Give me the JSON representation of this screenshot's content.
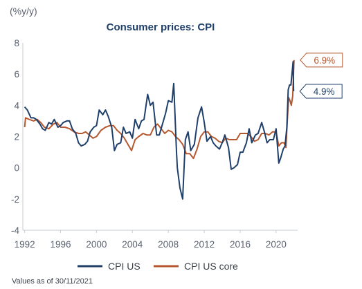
{
  "chart_data": {
    "type": "line",
    "title": "Consumer prices: CPI",
    "ylabel": "(%y/y)",
    "xlabel": "",
    "ylim": [
      -4,
      8
    ],
    "xlim": [
      1991.8,
      2022.4
    ],
    "y_ticks": [
      -4,
      -2,
      0,
      2,
      4,
      6,
      8
    ],
    "x_ticks": [
      1992,
      1996,
      2000,
      2004,
      2008,
      2012,
      2016,
      2020
    ],
    "grid": false,
    "legend_position": "bottom",
    "note": "Values as of 30/11/2021",
    "series": [
      {
        "name": "CPI US",
        "color": "#1f3f6b",
        "end_label": "4.9%",
        "points": [
          [
            1992.0,
            3.9
          ],
          [
            1992.3,
            3.7
          ],
          [
            1992.7,
            3.2
          ],
          [
            1993.0,
            3.2
          ],
          [
            1993.3,
            3.1
          ],
          [
            1993.7,
            2.8
          ],
          [
            1994.0,
            2.5
          ],
          [
            1994.3,
            2.4
          ],
          [
            1994.7,
            2.9
          ],
          [
            1995.0,
            2.8
          ],
          [
            1995.3,
            3.1
          ],
          [
            1995.7,
            2.6
          ],
          [
            1996.0,
            2.7
          ],
          [
            1996.3,
            2.9
          ],
          [
            1996.7,
            3.0
          ],
          [
            1997.0,
            3.0
          ],
          [
            1997.3,
            2.5
          ],
          [
            1997.7,
            2.2
          ],
          [
            1998.0,
            1.6
          ],
          [
            1998.3,
            1.4
          ],
          [
            1998.7,
            1.5
          ],
          [
            1999.0,
            1.7
          ],
          [
            1999.3,
            2.3
          ],
          [
            1999.7,
            2.6
          ],
          [
            2000.0,
            2.7
          ],
          [
            2000.3,
            3.7
          ],
          [
            2000.7,
            3.4
          ],
          [
            2001.0,
            3.7
          ],
          [
            2001.3,
            3.3
          ],
          [
            2001.7,
            2.6
          ],
          [
            2002.0,
            1.1
          ],
          [
            2002.3,
            1.5
          ],
          [
            2002.7,
            1.6
          ],
          [
            2003.0,
            2.6
          ],
          [
            2003.3,
            2.2
          ],
          [
            2003.7,
            2.3
          ],
          [
            2004.0,
            1.9
          ],
          [
            2004.3,
            3.1
          ],
          [
            2004.7,
            2.5
          ],
          [
            2005.0,
            3.0
          ],
          [
            2005.3,
            3.1
          ],
          [
            2005.7,
            4.7
          ],
          [
            2006.0,
            4.0
          ],
          [
            2006.3,
            4.2
          ],
          [
            2006.7,
            2.1
          ],
          [
            2007.0,
            2.1
          ],
          [
            2007.3,
            2.7
          ],
          [
            2007.7,
            3.5
          ],
          [
            2008.0,
            4.3
          ],
          [
            2008.4,
            4.2
          ],
          [
            2008.6,
            5.4
          ],
          [
            2008.9,
            1.1
          ],
          [
            2009.0,
            0.0
          ],
          [
            2009.3,
            -1.3
          ],
          [
            2009.6,
            -2.0
          ],
          [
            2009.9,
            1.8
          ],
          [
            2010.2,
            2.3
          ],
          [
            2010.5,
            1.1
          ],
          [
            2010.9,
            1.5
          ],
          [
            2011.3,
            3.2
          ],
          [
            2011.7,
            3.9
          ],
          [
            2012.0,
            2.9
          ],
          [
            2012.3,
            1.7
          ],
          [
            2012.7,
            2.0
          ],
          [
            2013.0,
            1.6
          ],
          [
            2013.3,
            1.4
          ],
          [
            2013.7,
            1.2
          ],
          [
            2014.0,
            1.6
          ],
          [
            2014.3,
            2.1
          ],
          [
            2014.7,
            1.3
          ],
          [
            2015.0,
            -0.1
          ],
          [
            2015.3,
            0.0
          ],
          [
            2015.7,
            0.2
          ],
          [
            2016.0,
            1.0
          ],
          [
            2016.3,
            1.0
          ],
          [
            2016.7,
            1.6
          ],
          [
            2017.0,
            2.5
          ],
          [
            2017.3,
            1.6
          ],
          [
            2017.7,
            2.1
          ],
          [
            2018.0,
            2.2
          ],
          [
            2018.4,
            2.9
          ],
          [
            2018.7,
            2.3
          ],
          [
            2019.0,
            1.6
          ],
          [
            2019.3,
            1.8
          ],
          [
            2019.7,
            1.8
          ],
          [
            2020.0,
            2.5
          ],
          [
            2020.3,
            0.3
          ],
          [
            2020.5,
            0.6
          ],
          [
            2020.8,
            1.2
          ],
          [
            2021.0,
            1.4
          ],
          [
            2021.2,
            2.6
          ],
          [
            2021.35,
            5.0
          ],
          [
            2021.5,
            5.3
          ],
          [
            2021.65,
            5.3
          ],
          [
            2021.8,
            6.2
          ],
          [
            2021.9,
            6.8
          ],
          [
            2021.95,
            4.9
          ]
        ]
      },
      {
        "name": "CPI US core",
        "color": "#b5582f",
        "end_label": "6.9%",
        "points": [
          [
            1992.0,
            2.6
          ],
          [
            1992.1,
            3.2
          ],
          [
            1992.5,
            3.1
          ],
          [
            1993.0,
            3.0
          ],
          [
            1993.4,
            3.1
          ],
          [
            1993.8,
            2.9
          ],
          [
            1994.2,
            2.6
          ],
          [
            1994.7,
            2.5
          ],
          [
            1995.2,
            2.8
          ],
          [
            1995.6,
            2.9
          ],
          [
            1996.0,
            2.6
          ],
          [
            1996.5,
            2.6
          ],
          [
            1997.0,
            2.5
          ],
          [
            1997.5,
            2.3
          ],
          [
            1998.0,
            2.2
          ],
          [
            1998.4,
            2.2
          ],
          [
            1998.8,
            2.3
          ],
          [
            1999.2,
            2.1
          ],
          [
            1999.6,
            1.9
          ],
          [
            2000.0,
            2.0
          ],
          [
            2000.5,
            2.4
          ],
          [
            2001.0,
            2.6
          ],
          [
            2001.5,
            2.7
          ],
          [
            2001.9,
            2.7
          ],
          [
            2002.3,
            2.4
          ],
          [
            2002.7,
            2.2
          ],
          [
            2003.1,
            1.9
          ],
          [
            2003.5,
            1.5
          ],
          [
            2003.9,
            1.1
          ],
          [
            2004.3,
            1.8
          ],
          [
            2004.7,
            2.0
          ],
          [
            2005.2,
            2.2
          ],
          [
            2005.6,
            2.1
          ],
          [
            2006.0,
            2.1
          ],
          [
            2006.4,
            2.6
          ],
          [
            2006.8,
            2.8
          ],
          [
            2007.2,
            2.5
          ],
          [
            2007.6,
            2.2
          ],
          [
            2008.0,
            2.4
          ],
          [
            2008.4,
            2.3
          ],
          [
            2008.8,
            2.0
          ],
          [
            2009.2,
            1.8
          ],
          [
            2009.6,
            1.5
          ],
          [
            2010.0,
            0.9
          ],
          [
            2010.4,
            0.9
          ],
          [
            2010.8,
            0.6
          ],
          [
            2011.2,
            1.2
          ],
          [
            2011.6,
            2.0
          ],
          [
            2012.0,
            2.3
          ],
          [
            2012.4,
            2.3
          ],
          [
            2012.8,
            2.0
          ],
          [
            2013.2,
            1.9
          ],
          [
            2013.6,
            1.7
          ],
          [
            2014.0,
            1.6
          ],
          [
            2014.4,
            1.9
          ],
          [
            2014.8,
            1.8
          ],
          [
            2015.2,
            1.8
          ],
          [
            2015.6,
            1.8
          ],
          [
            2016.0,
            2.2
          ],
          [
            2016.4,
            2.2
          ],
          [
            2016.8,
            2.2
          ],
          [
            2017.2,
            2.0
          ],
          [
            2017.6,
            1.7
          ],
          [
            2018.0,
            1.8
          ],
          [
            2018.4,
            2.2
          ],
          [
            2018.8,
            2.2
          ],
          [
            2019.2,
            2.1
          ],
          [
            2019.6,
            2.3
          ],
          [
            2020.0,
            2.3
          ],
          [
            2020.3,
            1.4
          ],
          [
            2020.6,
            1.6
          ],
          [
            2020.9,
            1.6
          ],
          [
            2021.1,
            1.3
          ],
          [
            2021.25,
            3.0
          ],
          [
            2021.4,
            4.5
          ],
          [
            2021.55,
            4.3
          ],
          [
            2021.7,
            4.0
          ],
          [
            2021.85,
            4.6
          ],
          [
            2022.0,
            6.9
          ]
        ]
      }
    ]
  }
}
